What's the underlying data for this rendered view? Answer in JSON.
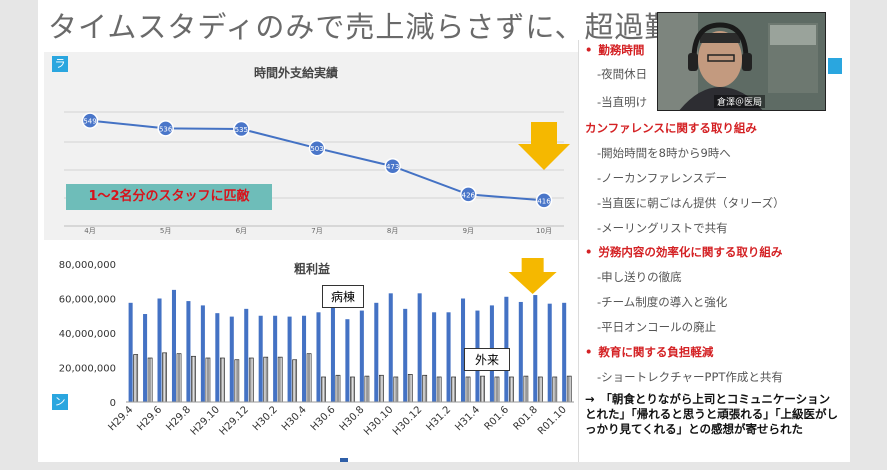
{
  "slide": {
    "title": "タイムスタディのみで売上減らさずに、超過勤務"
  },
  "tags": {
    "top_left": "ラ",
    "bottom_left": "ン"
  },
  "chart_data": [
    {
      "type": "line",
      "title": "時間外支給実績",
      "categories": [
        "4月",
        "5月",
        "6月",
        "7月",
        "8月",
        "9月",
        "10月"
      ],
      "series": [
        {
          "values": [
            549,
            536,
            535,
            503,
            473,
            426,
            416
          ]
        }
      ],
      "annotation": "1～2名分のスタッフに匹敵",
      "grid": true
    },
    {
      "type": "bar",
      "title": "粗利益",
      "categories": [
        "H29.4",
        "H29.5",
        "H29.6",
        "H29.7",
        "H29.8",
        "H29.9",
        "H29.10",
        "H29.11",
        "H29.12",
        "H30.1",
        "H30.2",
        "H30.3",
        "H30.4",
        "H30.5",
        "H30.6",
        "H30.7",
        "H30.8",
        "H30.9",
        "H30.10",
        "H30.11",
        "H30.12",
        "H31.1",
        "H31.2",
        "H31.3",
        "H31.4",
        "R01.5",
        "R01.6",
        "R01.7",
        "R01.8",
        "R01.9",
        "R01.10"
      ],
      "tick_labels": [
        "H29.4",
        "H29.6",
        "H29.8",
        "H29.10",
        "H29.12",
        "H30.2",
        "H30.4",
        "H30.6",
        "H30.8",
        "H30.10",
        "H30.12",
        "H31.2",
        "H31.4",
        "R01.6",
        "R01.8",
        "R01.10"
      ],
      "y_ticks": [
        "80,000,000",
        "60,000,000",
        "40,000,000",
        "20,000,000",
        "0"
      ],
      "ylim": [
        0,
        80000000
      ],
      "series": [
        {
          "name": "病棟",
          "values": [
            57500000,
            51000000,
            60000000,
            65000000,
            58500000,
            56000000,
            51500000,
            49500000,
            54000000,
            50000000,
            50000000,
            49500000,
            50000000,
            52000000,
            56000000,
            48000000,
            53000000,
            57500000,
            63000000,
            54000000,
            63000000,
            52000000,
            52000000,
            60000000,
            53000000,
            56000000,
            61000000,
            58000000,
            62000000,
            57000000,
            57500000
          ]
        },
        {
          "name": "外来",
          "values": [
            27500000,
            25500000,
            28500000,
            28000000,
            26500000,
            25500000,
            25500000,
            24500000,
            25500000,
            26000000,
            26000000,
            24500000,
            28000000,
            14500000,
            15500000,
            14500000,
            15000000,
            15500000,
            14500000,
            16000000,
            15500000,
            14500000,
            14500000,
            14500000,
            15000000,
            14500000,
            14500000,
            15000000,
            14500000,
            14500000,
            15000000
          ]
        }
      ],
      "bubbles": {
        "ward": "病棟",
        "outpatient": "外来"
      }
    }
  ],
  "right_column": {
    "items": [
      {
        "kind": "head",
        "bullet": "•",
        "text": "勤務時間"
      },
      {
        "kind": "sub",
        "text": "-夜間休日"
      },
      {
        "kind": "sub",
        "text": "-当直明け"
      },
      {
        "kind": "head",
        "bullet": "",
        "text": "カンファレンスに関する取り組み"
      },
      {
        "kind": "sub",
        "text": "-開始時間を8時から9時へ"
      },
      {
        "kind": "sub",
        "text": "-ノーカンファレンスデー"
      },
      {
        "kind": "sub",
        "text": "-当直医に朝ごはん提供（タリーズ）"
      },
      {
        "kind": "sub",
        "text": "-メーリングリストで共有"
      },
      {
        "kind": "head",
        "bullet": "•",
        "text": "労務内容の効率化に関する取り組み"
      },
      {
        "kind": "sub",
        "text": "-申し送りの徹底"
      },
      {
        "kind": "sub",
        "text": "-チーム制度の導入と強化"
      },
      {
        "kind": "sub",
        "text": "-平日オンコールの廃止"
      },
      {
        "kind": "head",
        "bullet": "•",
        "text": "教育に関する負担軽減"
      },
      {
        "kind": "sub",
        "text": "-ショートレクチャーPPT作成と共有"
      }
    ],
    "conclusion": "→　「朝食とりながら上司とコミュニケーションとれた」「帰れると思うと頑張れる」「上級医がしっかり見てくれる」との感想が寄せられた"
  },
  "webcam": {
    "name": "倉澤＠医局"
  },
  "colors": {
    "accent": "#2aa6df",
    "line": "#4472c4",
    "bar": "#4472c4",
    "arrow": "#f5b800",
    "red": "#d42124"
  }
}
